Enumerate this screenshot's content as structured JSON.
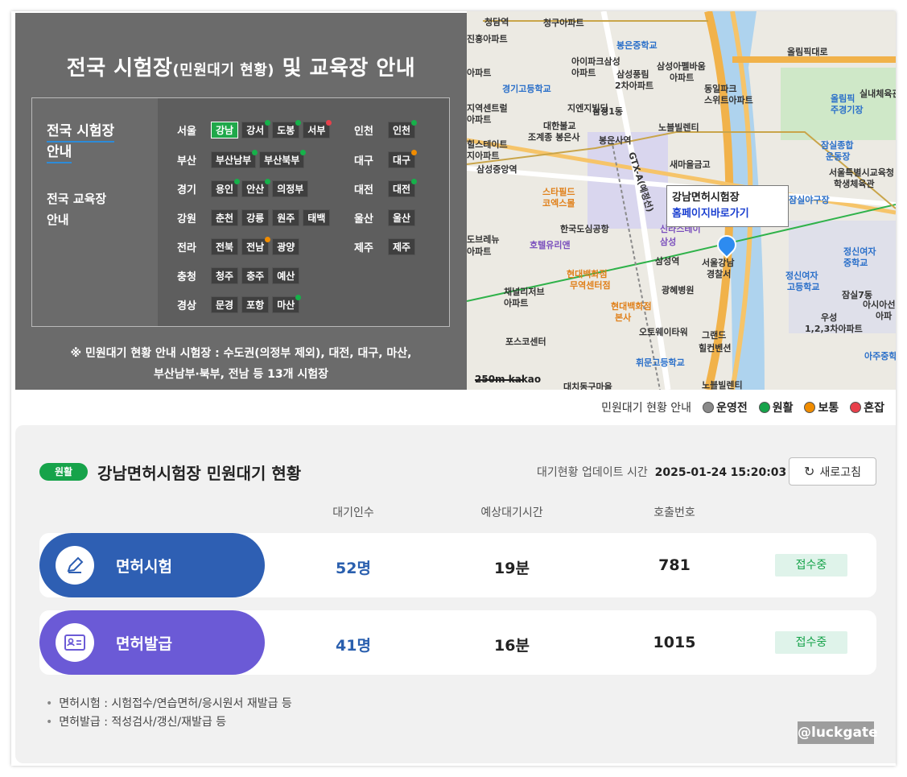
{
  "panel": {
    "title": "전국 시험장",
    "title_small": "(민원대기 현황)",
    "title_rest": " 및 교육장 안내",
    "tab_exam_1": "전국 시험장",
    "tab_exam_2": "안내",
    "tab_edu_1": "전국 교육장",
    "tab_edu_2": "안내",
    "note_line1": "※ 민원대기 현황 안내 시험장 : 수도권(의정부 제외), 대전, 대구, 마산,",
    "note_line2": "부산남부·북부, 전남 등 13개 시험장",
    "left_regions": [
      {
        "name": "서울",
        "sites": [
          {
            "label": "강남",
            "dot": "",
            "active": true
          },
          {
            "label": "강서",
            "dot": "g"
          },
          {
            "label": "도봉",
            "dot": "g"
          },
          {
            "label": "서부",
            "dot": "r"
          }
        ]
      },
      {
        "name": "부산",
        "sites": [
          {
            "label": "부산남부",
            "dot": "g"
          },
          {
            "label": "부산북부",
            "dot": "g"
          }
        ]
      },
      {
        "name": "경기",
        "sites": [
          {
            "label": "용인",
            "dot": "g"
          },
          {
            "label": "안산",
            "dot": "g"
          },
          {
            "label": "의정부",
            "dot": ""
          }
        ]
      },
      {
        "name": "강원",
        "sites": [
          {
            "label": "춘천",
            "dot": ""
          },
          {
            "label": "강릉",
            "dot": ""
          },
          {
            "label": "원주",
            "dot": ""
          },
          {
            "label": "태백",
            "dot": ""
          }
        ]
      },
      {
        "name": "전라",
        "sites": [
          {
            "label": "전북",
            "dot": ""
          },
          {
            "label": "전남",
            "dot": "o"
          },
          {
            "label": "광양",
            "dot": ""
          }
        ]
      },
      {
        "name": "충청",
        "sites": [
          {
            "label": "청주",
            "dot": ""
          },
          {
            "label": "충주",
            "dot": ""
          },
          {
            "label": "예산",
            "dot": ""
          }
        ]
      },
      {
        "name": "경상",
        "sites": [
          {
            "label": "문경",
            "dot": ""
          },
          {
            "label": "포항",
            "dot": ""
          },
          {
            "label": "마산",
            "dot": "g"
          }
        ]
      }
    ],
    "right_regions": [
      {
        "name": "인천",
        "sites": [
          {
            "label": "인천",
            "dot": "g"
          }
        ]
      },
      {
        "name": "대구",
        "sites": [
          {
            "label": "대구",
            "dot": "o"
          }
        ]
      },
      {
        "name": "대전",
        "sites": [
          {
            "label": "대전",
            "dot": "g"
          }
        ]
      },
      {
        "name": "울산",
        "sites": [
          {
            "label": "울산",
            "dot": ""
          }
        ]
      },
      {
        "name": "제주",
        "sites": [
          {
            "label": "제주",
            "dot": ""
          }
        ]
      }
    ]
  },
  "map": {
    "info_name": "강남면허시험장",
    "info_link": "홈페이지바로가기",
    "scale": "250m",
    "brand": "kakao",
    "labels": [
      {
        "t": "청담역",
        "c": ""
      },
      {
        "t": "청구아파트",
        "c": ""
      },
      {
        "t": "진흥아파트",
        "c": ""
      },
      {
        "t": "봉은중학교",
        "c": "blue"
      },
      {
        "t": "올림픽대로",
        "c": ""
      },
      {
        "t": "아이파크삼성",
        "c": ""
      },
      {
        "t": "아파트",
        "c": ""
      },
      {
        "t": "삼성아펠바움",
        "c": ""
      },
      {
        "t": "아파트",
        "c": ""
      },
      {
        "t": "경기고등학교",
        "c": "blue"
      },
      {
        "t": "삼성풍림",
        "c": ""
      },
      {
        "t": "2차아파트",
        "c": ""
      },
      {
        "t": "아파트",
        "c": ""
      },
      {
        "t": "동일파크",
        "c": ""
      },
      {
        "t": "스위트아파트",
        "c": ""
      },
      {
        "t": "실내체육관",
        "c": ""
      },
      {
        "t": "올림픽",
        "c": "blue"
      },
      {
        "t": "주경기장",
        "c": "blue"
      },
      {
        "t": "지역센트럴",
        "c": ""
      },
      {
        "t": "아파트",
        "c": ""
      },
      {
        "t": "지엔지빌딩",
        "c": ""
      },
      {
        "t": "삼성1동",
        "c": ""
      },
      {
        "t": "대한불교",
        "c": ""
      },
      {
        "t": "조계종 봉은사",
        "c": ""
      },
      {
        "t": "노블빌렌티",
        "c": ""
      },
      {
        "t": "힐스테이트",
        "c": ""
      },
      {
        "t": "지아파트",
        "c": ""
      },
      {
        "t": "봉은사역",
        "c": ""
      },
      {
        "t": "잠실종합",
        "c": "blue"
      },
      {
        "t": "운동장",
        "c": "blue"
      },
      {
        "t": "삼성중앙역",
        "c": ""
      },
      {
        "t": "새마을금고",
        "c": ""
      },
      {
        "t": "스타필드",
        "c": "orange"
      },
      {
        "t": "코엑스몰",
        "c": "orange"
      },
      {
        "t": "서울특별시교육청",
        "c": ""
      },
      {
        "t": "학생체육관",
        "c": ""
      },
      {
        "t": "잠실야구장",
        "c": "blue"
      },
      {
        "t": "한국도심공항",
        "c": ""
      },
      {
        "t": "신라스테이",
        "c": "purple"
      },
      {
        "t": "삼성",
        "c": "purple"
      },
      {
        "t": "도브레뉴",
        "c": ""
      },
      {
        "t": "아파트",
        "c": ""
      },
      {
        "t": "호텔유리앤",
        "c": "purple"
      },
      {
        "t": "삼성역",
        "c": ""
      },
      {
        "t": "서울강남",
        "c": ""
      },
      {
        "t": "경찰서",
        "c": ""
      },
      {
        "t": "현대백화점",
        "c": "orange"
      },
      {
        "t": "무역센터점",
        "c": "orange"
      },
      {
        "t": "광혜병원",
        "c": ""
      },
      {
        "t": "정신여자",
        "c": "blue"
      },
      {
        "t": "중학교",
        "c": "blue"
      },
      {
        "t": "정신여자",
        "c": "blue"
      },
      {
        "t": "고등학교",
        "c": "blue"
      },
      {
        "t": "채널리저브",
        "c": ""
      },
      {
        "t": "아파트",
        "c": ""
      },
      {
        "t": "현대백화점",
        "c": "orange"
      },
      {
        "t": "본사",
        "c": "orange"
      },
      {
        "t": "잠실7동",
        "c": ""
      },
      {
        "t": "우성",
        "c": ""
      },
      {
        "t": "1,2,3차아파트",
        "c": ""
      },
      {
        "t": "아시아선",
        "c": ""
      },
      {
        "t": "아파",
        "c": ""
      },
      {
        "t": "오토웨이타워",
        "c": ""
      },
      {
        "t": "포스코센터",
        "c": ""
      },
      {
        "t": "그랜드",
        "c": ""
      },
      {
        "t": "힐컨벤션",
        "c": ""
      },
      {
        "t": "아주중학",
        "c": "blue"
      },
      {
        "t": "휘문고등학교",
        "c": "blue"
      },
      {
        "t": "대치동구마을",
        "c": ""
      },
      {
        "t": "노블빌렌티",
        "c": ""
      },
      {
        "t": "GTX-A(예정선)",
        "c": ""
      }
    ]
  },
  "legend": {
    "title": "민원대기 현황 안내",
    "items": [
      {
        "label": "운영전",
        "color": "#8a8a8a"
      },
      {
        "label": "원활",
        "color": "#16a34a"
      },
      {
        "label": "보통",
        "color": "#f08c00"
      },
      {
        "label": "혼잡",
        "color": "#e8404b"
      }
    ]
  },
  "status": {
    "badge": "원활",
    "title": "강남면허시험장 민원대기 현황",
    "update_label": "대기현황 업데이트 시간",
    "update_date": "2025-01-24",
    "update_time": "15:20:03",
    "refresh": "새로고침",
    "columns": [
      "대기인수",
      "예상대기시간",
      "호출번호"
    ],
    "rows": [
      {
        "label": "면허시험",
        "waiting": "52명",
        "wait_time": "19분",
        "call_no": "781",
        "state": "접수중",
        "color": "#2e5fb3"
      },
      {
        "label": "면허발급",
        "waiting": "41명",
        "wait_time": "16분",
        "call_no": "1015",
        "state": "접수중",
        "color": "#6b5ad6"
      }
    ],
    "notes": [
      "면허시험 : 시험접수/연습면허/응시원서 재발급 등",
      "면허발급 : 적성검사/갱신/재발급 등"
    ]
  },
  "watermark": "@luckgate"
}
